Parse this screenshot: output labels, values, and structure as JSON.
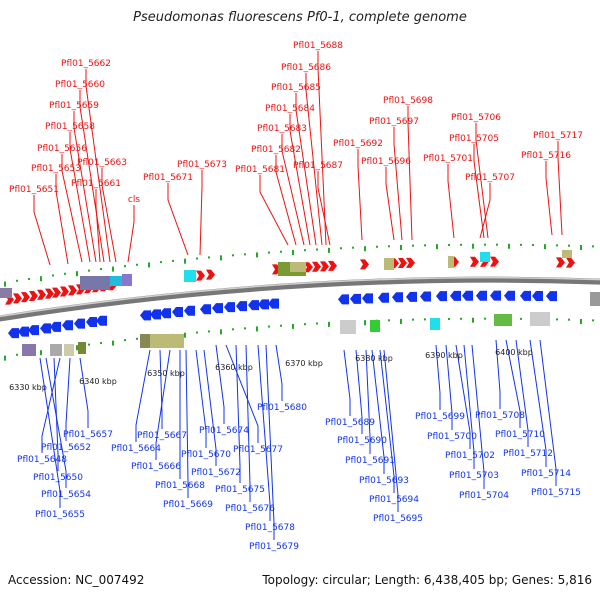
{
  "title": "Pseudomonas fluorescens Pf0-1, complete genome",
  "footer": {
    "accession": "Accession: NC_007492",
    "summary": "Topology: circular; Length: 6,438,405 bp; Genes: 5,816"
  },
  "colors": {
    "forward": "#ee1111",
    "reverse": "#1133ee",
    "backbone": "#999999",
    "tick": "#22aa22"
  },
  "scale": [
    "6330 kbp",
    "6340 kbp",
    "6350 kbp",
    "6360 kbp",
    "6370 kbp",
    "6380 kbp",
    "6390 kbp",
    "6400 kbp"
  ],
  "top_labels": [
    "Pfl01_5688",
    "Pfl01_5686",
    "Pfl01_5685",
    "Pfl01_5684",
    "Pfl01_5683",
    "Pfl01_5682",
    "Pfl01_5681",
    "Pfl01_5687",
    "Pfl01_5662",
    "Pfl01_5660",
    "Pfl01_5659",
    "Pfl01_5658",
    "Pfl01_5656",
    "Pfl01_5653",
    "Pfl01_5651",
    "Pfl01_5663",
    "Pfl01_5661",
    "cls",
    "Pfl01_5671",
    "Pfl01_5673",
    "Pfl01_5698",
    "Pfl01_5697",
    "Pfl01_5692",
    "Pfl01_5696",
    "Pfl01_5706",
    "Pfl01_5705",
    "Pfl01_5701",
    "Pfl01_5707",
    "Pfl01_5717",
    "Pfl01_5716"
  ],
  "bottom_labels": [
    "Pfl01_5657",
    "Pfl01_5652",
    "Pfl01_5648",
    "Pfl01_5650",
    "Pfl01_5654",
    "Pfl01_5655",
    "Pfl01_5667",
    "Pfl01_5664",
    "Pfl01_5666",
    "Pfl01_5668",
    "Pfl01_5669",
    "Pfl01_5670",
    "Pfl01_5672",
    "Pfl01_5674",
    "Pfl01_5677",
    "Pfl01_5675",
    "Pfl01_5676",
    "Pfl01_5678",
    "Pfl01_5679",
    "Pfl01_5680",
    "Pfl01_5689",
    "Pfl01_5690",
    "Pfl01_5691",
    "Pfl01_5693",
    "Pfl01_5694",
    "Pfl01_5695",
    "Pfl01_5699",
    "Pfl01_5700",
    "Pfl01_5702",
    "Pfl01_5703",
    "Pfl01_5704",
    "Pfl01_5708",
    "Pfl01_5710",
    "Pfl01_5712",
    "Pfl01_5714",
    "Pfl01_5715"
  ]
}
